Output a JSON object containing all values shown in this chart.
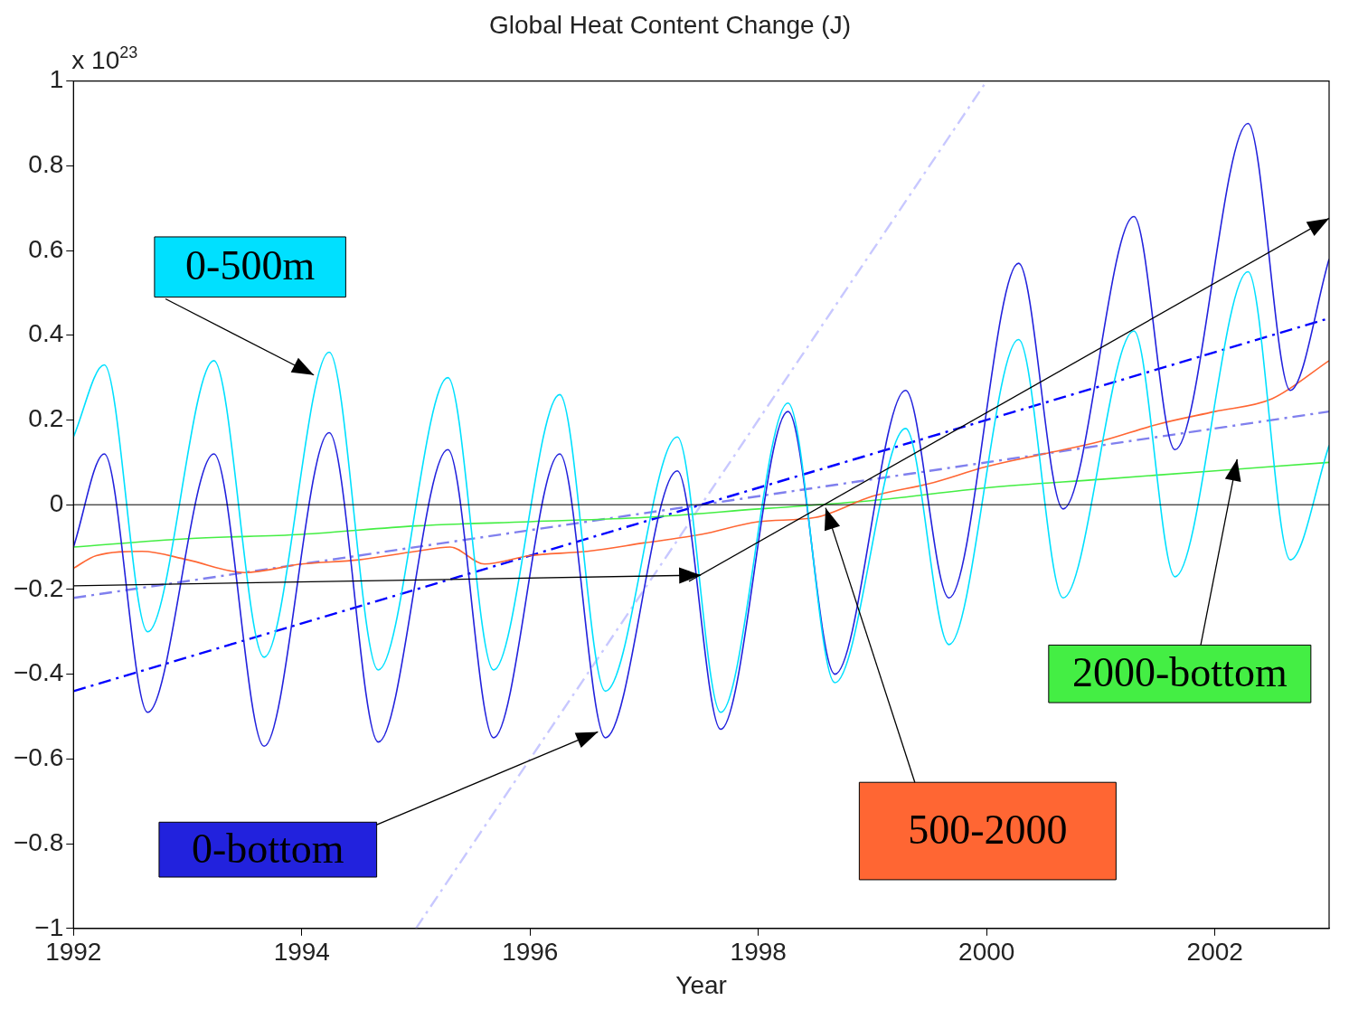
{
  "chart_data": {
    "type": "line",
    "title": "Global Heat Content Change (J)",
    "xlabel": "Year",
    "ylabel": "x 10$^{23}$",
    "xlim": [
      1992,
      2003
    ],
    "xticks": [
      1992,
      1994,
      1996,
      1998,
      2000,
      2002
    ],
    "ylim": [
      -1,
      1
    ],
    "yticks": [
      {
        "value": -1,
        "label": "−1"
      },
      {
        "value": -0.8,
        "label": "−0.8"
      },
      {
        "value": -0.6,
        "label": "−0.6"
      },
      {
        "value": -0.4,
        "label": "−0.4"
      },
      {
        "value": -0.2,
        "label": "−0.2"
      },
      0,
      0.2,
      0.4,
      0.6,
      0.8,
      1
    ],
    "grid": false,
    "legend": false,
    "marker": "none",
    "line_style": "solid",
    "ref_lines": [
      {
        "axis": "y",
        "value": 0,
        "color": "#000000"
      }
    ],
    "series": [
      {
        "name": "0-500m",
        "color": "#00e0ff",
        "x": [
          1992,
          1992.27,
          1992.65,
          1993.23,
          1993.67,
          1994.24,
          1994.67,
          1995.28,
          1995.68,
          1996.26,
          1996.66,
          1997.29,
          1997.67,
          1998.26,
          1998.67,
          1999.29,
          1999.67,
          2000.28,
          2000.67,
          2001.29,
          2001.65,
          2002.29,
          2002.66,
          2003
        ],
        "values": [
          0.16,
          0.33,
          -0.3,
          0.34,
          -0.36,
          0.36,
          -0.39,
          0.3,
          -0.39,
          0.26,
          -0.44,
          0.16,
          -0.49,
          0.24,
          -0.42,
          0.18,
          -0.33,
          0.39,
          -0.22,
          0.41,
          -0.17,
          0.55,
          -0.13,
          0.14
        ]
      },
      {
        "name": "0-bottom",
        "color": "#2222dd",
        "x": [
          1992,
          1992.27,
          1992.65,
          1993.23,
          1993.67,
          1994.24,
          1994.67,
          1995.28,
          1995.68,
          1996.26,
          1996.66,
          1997.29,
          1997.67,
          1998.26,
          1998.67,
          1999.29,
          1999.67,
          2000.28,
          2000.67,
          2001.29,
          2001.65,
          2002.29,
          2002.66,
          2003
        ],
        "values": [
          -0.1,
          0.12,
          -0.49,
          0.12,
          -0.57,
          0.17,
          -0.56,
          0.13,
          -0.55,
          0.12,
          -0.55,
          0.08,
          -0.53,
          0.22,
          -0.4,
          0.27,
          -0.22,
          0.57,
          -0.01,
          0.68,
          0.13,
          0.9,
          0.27,
          0.58
        ]
      },
      {
        "name": "500-2000",
        "color": "#ff6633",
        "x": [
          1992,
          1992.2,
          1992.6,
          1993,
          1993.5,
          1994,
          1994.5,
          1995,
          1995.3,
          1995.6,
          1996,
          1996.5,
          1997,
          1997.5,
          1998,
          1998.5,
          1999,
          1999.5,
          2000,
          2000.5,
          2001,
          2001.5,
          2002,
          2002.5,
          2003
        ],
        "values": [
          -0.15,
          -0.12,
          -0.11,
          -0.13,
          -0.16,
          -0.14,
          -0.13,
          -0.11,
          -0.1,
          -0.14,
          -0.12,
          -0.11,
          -0.09,
          -0.07,
          -0.04,
          -0.03,
          0.02,
          0.05,
          0.09,
          0.12,
          0.15,
          0.19,
          0.22,
          0.25,
          0.34
        ]
      },
      {
        "name": "2000-bottom",
        "color": "#44ee44",
        "x": [
          1992,
          1993,
          1994,
          1995,
          1996,
          1997,
          1998,
          1999,
          2000,
          2001,
          2002,
          2003
        ],
        "values": [
          -0.1,
          -0.08,
          -0.07,
          -0.05,
          -0.04,
          -0.03,
          -0.01,
          0.01,
          0.04,
          0.06,
          0.08,
          0.1
        ]
      },
      {
        "color": "#0000ff",
        "line_style": "dashed",
        "x": [
          1992,
          2003
        ],
        "values": [
          -0.44,
          0.44
        ]
      },
      {
        "color": "#8080ee",
        "line_style": "dashed",
        "x": [
          1992,
          2003
        ],
        "values": [
          -0.22,
          0.22
        ]
      },
      {
        "color": "#c8c8ff",
        "line_style": "dashed",
        "x": [
          1995,
          2000
        ],
        "values": [
          -1,
          1
        ]
      }
    ]
  }
}
